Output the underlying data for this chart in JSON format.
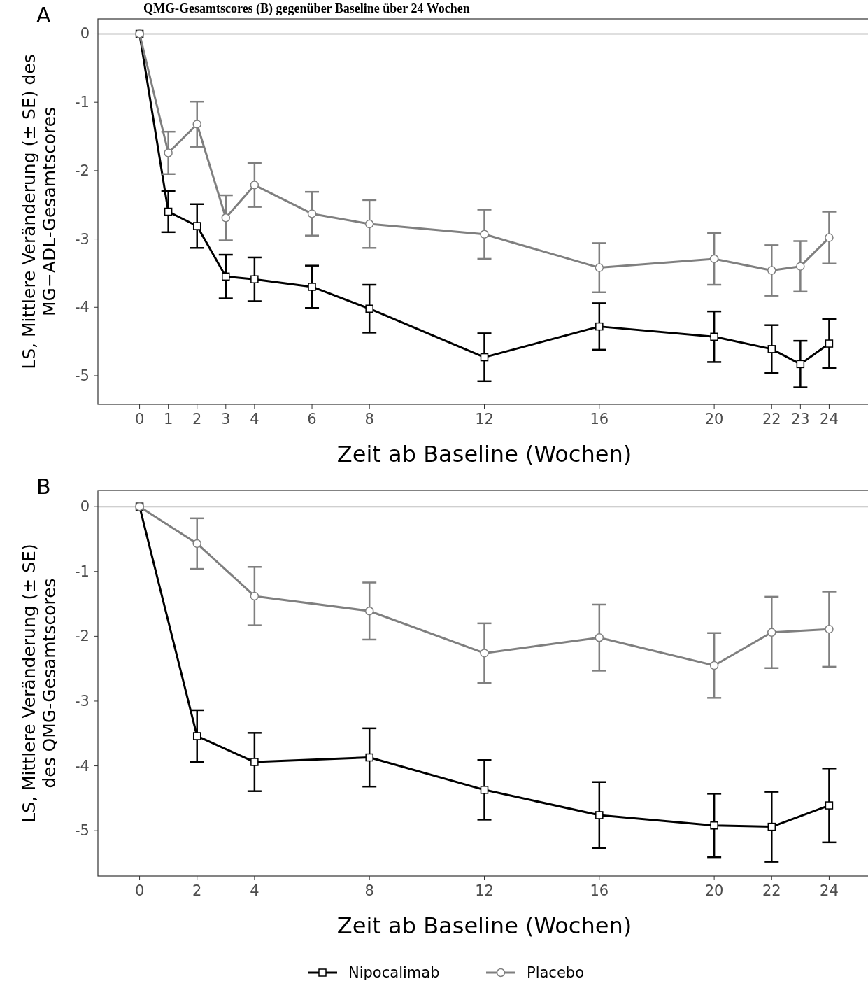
{
  "chart_data": [
    {
      "type": "line",
      "annotations": [
        "QMG-Gesamtscores (B) gegenüber Baseline über 24 Wochen",
        "A"
      ],
      "xlabel": "Zeit ab Baseline (Wochen)",
      "ylabel": "LS, Mittlere Veränderung (± SE) des\nMG−ADL-Gesamtscores",
      "xlim": [
        -1.45,
        25.45
      ],
      "ylim": [
        -5.42,
        0.22
      ],
      "xticks": [
        0,
        1,
        2,
        3,
        4,
        6,
        8,
        12,
        16,
        20,
        22,
        23,
        24
      ],
      "yticks": [
        0,
        -1,
        -2,
        -3,
        -4,
        -5
      ],
      "grid": false,
      "legend": false,
      "line_style": "solid",
      "ref_lines": [
        {
          "axis": "y",
          "value": 0,
          "color": "#bfbfbf"
        }
      ],
      "x": [
        0,
        1,
        2,
        3,
        4,
        6,
        8,
        12,
        16,
        20,
        22,
        23,
        24
      ],
      "series": [
        {
          "color": "#000000",
          "marker": "square",
          "values": [
            0,
            -2.6,
            -2.81,
            -3.55,
            -3.59,
            -3.7,
            -4.02,
            -4.73,
            -4.28,
            -4.43,
            -4.61,
            -4.83,
            -4.53
          ],
          "errors": [
            null,
            0.3,
            0.32,
            0.32,
            0.32,
            0.31,
            0.35,
            0.35,
            0.34,
            0.37,
            0.35,
            0.34,
            0.36
          ]
        },
        {
          "color": "#7f7f7f",
          "marker": "circle",
          "values": [
            0,
            -1.74,
            -1.32,
            -2.69,
            -2.21,
            -2.63,
            -2.78,
            -2.93,
            -3.42,
            -3.29,
            -3.46,
            -3.4,
            -2.98
          ],
          "errors": [
            null,
            0.31,
            0.33,
            0.33,
            0.32,
            0.32,
            0.35,
            0.36,
            0.36,
            0.38,
            0.37,
            0.37,
            0.38
          ]
        }
      ]
    },
    {
      "type": "line",
      "annotations": [
        "B"
      ],
      "xlabel": "Zeit ab Baseline (Wochen)",
      "ylabel": "LS, Mittlere Veränderung (± SE)\ndes QMG-Gesamtscores",
      "xlim": [
        -1.45,
        25.45
      ],
      "ylim": [
        -5.7,
        0.25
      ],
      "xticks": [
        0,
        2,
        4,
        8,
        12,
        16,
        20,
        22,
        24
      ],
      "yticks": [
        0,
        -1,
        -2,
        -3,
        -4,
        -5
      ],
      "grid": false,
      "legend": "bottom",
      "line_style": "solid",
      "ref_lines": [
        {
          "axis": "y",
          "value": 0,
          "color": "#bfbfbf"
        }
      ],
      "x": [
        0,
        2,
        4,
        8,
        12,
        16,
        20,
        22,
        24
      ],
      "series": [
        {
          "name": "Nipocalimab",
          "color": "#000000",
          "marker": "square",
          "values": [
            0,
            -3.54,
            -3.94,
            -3.87,
            -4.37,
            -4.76,
            -4.92,
            -4.94,
            -4.61
          ],
          "errors": [
            null,
            0.4,
            0.45,
            0.45,
            0.46,
            0.51,
            0.49,
            0.54,
            0.57
          ]
        },
        {
          "name": "Placebo",
          "color": "#7f7f7f",
          "marker": "circle",
          "values": [
            0,
            -0.57,
            -1.38,
            -1.61,
            -2.26,
            -2.02,
            -2.45,
            -1.94,
            -1.89
          ],
          "errors": [
            null,
            0.39,
            0.45,
            0.44,
            0.46,
            0.51,
            0.5,
            0.55,
            0.58
          ]
        }
      ]
    }
  ]
}
